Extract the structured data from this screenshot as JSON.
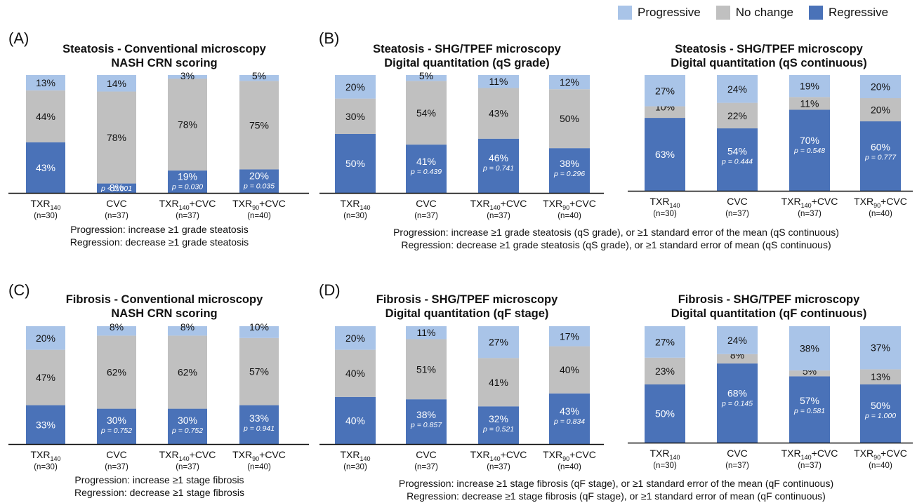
{
  "colors": {
    "progressive": "#a9c4e8",
    "no_change": "#c0c0c0",
    "regressive": "#4a72b8"
  },
  "legend": [
    {
      "key": "progressive",
      "label": "Progressive",
      "icon": "light-blue-square"
    },
    {
      "key": "no_change",
      "label": "No change",
      "icon": "gray-square"
    },
    {
      "key": "regressive",
      "label": "Regressive",
      "icon": "blue-square"
    }
  ],
  "panel_labels": {
    "A": "(A)",
    "B": "(B)",
    "C": "(C)",
    "D": "(D)"
  },
  "group_names": {
    "g1": {
      "main": "TXR",
      "sub": "140",
      "suffix": "",
      "n": "(n=30)"
    },
    "g2": {
      "main": "CVC",
      "sub": "",
      "suffix": "",
      "n": "(n=37)"
    },
    "g3": {
      "main": "TXR",
      "sub": "140",
      "suffix": "+CVC",
      "n": "(n=37)"
    },
    "g4": {
      "main": "TXR",
      "sub": "90",
      "suffix": "+CVC",
      "n": "(n=40)"
    }
  },
  "notes": {
    "A": [
      "Progression: increase ≥1 grade steatosis",
      "Regression: decrease ≥1 grade steatosis"
    ],
    "B": [
      "Progression: increase ≥1 grade steatosis (qS grade), or ≥1 standard error of the mean (qS continuous)",
      "Regression: decrease ≥1 grade steatosis (qS grade), or ≥1 standard error of mean (qS continuous)"
    ],
    "C": [
      "Progression: increase ≥1 stage fibrosis",
      "Regression: decrease ≥1 stage fibrosis"
    ],
    "D": [
      "Progression: increase ≥1 stage fibrosis (qF stage), or ≥1 standard error of the mean (qF continuous)",
      "Regression: decrease ≥1 stage fibrosis (qF stage), or ≥1 standard error of mean (qF continuous)"
    ]
  },
  "chart_data": [
    {
      "id": "A1",
      "type": "bar",
      "stacked": true,
      "title": [
        "Steatosis - Conventional microscopy",
        "NASH CRN scoring"
      ],
      "categories": [
        "TXR140 (n=30)",
        "CVC (n=37)",
        "TXR140+CVC (n=37)",
        "TXR90+CVC (n=40)"
      ],
      "series": [
        {
          "name": "Regressive",
          "values": [
            43,
            8,
            19,
            20
          ]
        },
        {
          "name": "No change",
          "values": [
            44,
            78,
            78,
            75
          ]
        },
        {
          "name": "Progressive",
          "values": [
            13,
            14,
            3,
            5
          ]
        }
      ],
      "p_values": [
        "",
        "p < 0.001",
        "p = 0.030",
        "p = 0.035"
      ],
      "ylim": [
        0,
        100
      ]
    },
    {
      "id": "B1",
      "type": "bar",
      "stacked": true,
      "title": [
        "Steatosis - SHG/TPEF microscopy",
        "Digital quantitation (qS grade)"
      ],
      "categories": [
        "TXR140 (n=30)",
        "CVC (n=37)",
        "TXR140+CVC (n=37)",
        "TXR90+CVC (n=40)"
      ],
      "series": [
        {
          "name": "Regressive",
          "values": [
            50,
            41,
            46,
            38
          ]
        },
        {
          "name": "No change",
          "values": [
            30,
            54,
            43,
            50
          ]
        },
        {
          "name": "Progressive",
          "values": [
            20,
            5,
            11,
            12
          ]
        }
      ],
      "p_values": [
        "",
        "p = 0.439",
        "p = 0.741",
        "p = 0.296"
      ],
      "ylim": [
        0,
        100
      ]
    },
    {
      "id": "B2",
      "type": "bar",
      "stacked": true,
      "title": [
        "Steatosis - SHG/TPEF microscopy",
        "Digital quantitation (qS continuous)"
      ],
      "categories": [
        "TXR140 (n=30)",
        "CVC (n=37)",
        "TXR140+CVC (n=37)",
        "TXR90+CVC (n=40)"
      ],
      "series": [
        {
          "name": "Regressive",
          "values": [
            63,
            54,
            70,
            60
          ]
        },
        {
          "name": "No change",
          "values": [
            10,
            22,
            11,
            20
          ]
        },
        {
          "name": "Progressive",
          "values": [
            27,
            24,
            19,
            20
          ]
        }
      ],
      "p_values": [
        "",
        "p = 0.444",
        "p = 0.548",
        "p = 0.777"
      ],
      "ylim": [
        0,
        100
      ]
    },
    {
      "id": "C1",
      "type": "bar",
      "stacked": true,
      "title": [
        "Fibrosis - Conventional microscopy",
        "NASH CRN scoring"
      ],
      "categories": [
        "TXR140 (n=30)",
        "CVC (n=37)",
        "TXR140+CVC (n=37)",
        "TXR90+CVC (n=40)"
      ],
      "series": [
        {
          "name": "Regressive",
          "values": [
            33,
            30,
            30,
            33
          ]
        },
        {
          "name": "No change",
          "values": [
            47,
            62,
            62,
            57
          ]
        },
        {
          "name": "Progressive",
          "values": [
            20,
            8,
            8,
            10
          ]
        }
      ],
      "p_values": [
        "",
        "p = 0.752",
        "p = 0.752",
        "p = 0.941"
      ],
      "ylim": [
        0,
        100
      ]
    },
    {
      "id": "D1",
      "type": "bar",
      "stacked": true,
      "title": [
        "Fibrosis - SHG/TPEF microscopy",
        "Digital quantitation (qF stage)"
      ],
      "categories": [
        "TXR140 (n=30)",
        "CVC (n=37)",
        "TXR140+CVC (n=37)",
        "TXR90+CVC (n=40)"
      ],
      "series": [
        {
          "name": "Regressive",
          "values": [
            40,
            38,
            32,
            43
          ]
        },
        {
          "name": "No change",
          "values": [
            40,
            51,
            41,
            40
          ]
        },
        {
          "name": "Progressive",
          "values": [
            20,
            11,
            27,
            17
          ]
        }
      ],
      "p_values": [
        "",
        "p = 0.857",
        "p = 0.521",
        "p = 0.834"
      ],
      "ylim": [
        0,
        100
      ]
    },
    {
      "id": "D2",
      "type": "bar",
      "stacked": true,
      "title": [
        "Fibrosis - SHG/TPEF microscopy",
        "Digital quantitation (qF continuous)"
      ],
      "categories": [
        "TXR140 (n=30)",
        "CVC (n=37)",
        "TXR140+CVC (n=37)",
        "TXR90+CVC (n=40)"
      ],
      "series": [
        {
          "name": "Regressive",
          "values": [
            50,
            68,
            57,
            50
          ]
        },
        {
          "name": "No change",
          "values": [
            23,
            8,
            5,
            13
          ]
        },
        {
          "name": "Progressive",
          "values": [
            27,
            24,
            38,
            37
          ]
        }
      ],
      "p_values": [
        "",
        "p = 0.145",
        "p = 0.581",
        "p = 1.000"
      ],
      "ylim": [
        0,
        100
      ]
    }
  ]
}
